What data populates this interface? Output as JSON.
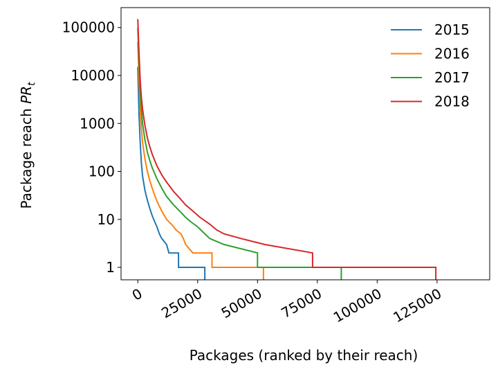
{
  "chart_data": {
    "type": "line",
    "title": "",
    "xlabel": "Packages (ranked by their reach)",
    "ylabel_prefix": "Package reach ",
    "ylabel_math": "PR",
    "ylabel_sub": "t",
    "xlim": [
      -7000,
      147000
    ],
    "ylim": [
      0.55,
      260000
    ],
    "yscale": "log",
    "grid": false,
    "legend_position": "top-right",
    "x_ticks": [
      0,
      25000,
      50000,
      75000,
      100000,
      125000
    ],
    "x_tick_labels": [
      "0",
      "25000",
      "50000",
      "75000",
      "100000",
      "125000"
    ],
    "y_ticks": [
      1,
      10,
      100,
      1000,
      10000,
      100000
    ],
    "y_tick_labels": [
      "1",
      "10",
      "100",
      "1000",
      "10000",
      "100000"
    ],
    "series": [
      {
        "name": "2015",
        "color": "#1f77b4",
        "points": [
          [
            0,
            15000
          ],
          [
            500,
            1500
          ],
          [
            1000,
            400
          ],
          [
            1500,
            150
          ],
          [
            2000,
            80
          ],
          [
            3000,
            40
          ],
          [
            4000,
            25
          ],
          [
            5000,
            17
          ],
          [
            6000,
            12
          ],
          [
            7000,
            9
          ],
          [
            8000,
            7
          ],
          [
            9000,
            5
          ],
          [
            10000,
            4
          ],
          [
            12000,
            3
          ],
          [
            13000,
            2
          ],
          [
            17000,
            2
          ],
          [
            17000,
            1
          ],
          [
            28000,
            1
          ],
          [
            28000,
            0.55
          ]
        ]
      },
      {
        "name": "2016",
        "color": "#ff7f0e",
        "points": [
          [
            0,
            50000
          ],
          [
            500,
            8000
          ],
          [
            1000,
            2000
          ],
          [
            1500,
            800
          ],
          [
            2000,
            400
          ],
          [
            3000,
            180
          ],
          [
            4000,
            100
          ],
          [
            5000,
            65
          ],
          [
            6000,
            45
          ],
          [
            7000,
            32
          ],
          [
            8000,
            24
          ],
          [
            10000,
            15
          ],
          [
            12000,
            10
          ],
          [
            14000,
            8
          ],
          [
            16000,
            6
          ],
          [
            18000,
            5
          ],
          [
            19000,
            4
          ],
          [
            20000,
            3
          ],
          [
            23000,
            2
          ],
          [
            31000,
            2
          ],
          [
            31000,
            1
          ],
          [
            52500,
            1
          ],
          [
            52500,
            0.55
          ]
        ]
      },
      {
        "name": "2017",
        "color": "#2ca02c",
        "points": [
          [
            0,
            100000
          ],
          [
            500,
            20000
          ],
          [
            1000,
            5000
          ],
          [
            1500,
            2000
          ],
          [
            2000,
            1000
          ],
          [
            3000,
            450
          ],
          [
            4000,
            250
          ],
          [
            5000,
            170
          ],
          [
            6000,
            120
          ],
          [
            8000,
            70
          ],
          [
            10000,
            45
          ],
          [
            12000,
            30
          ],
          [
            15000,
            20
          ],
          [
            18000,
            14
          ],
          [
            20000,
            11
          ],
          [
            22000,
            9
          ],
          [
            25000,
            7
          ],
          [
            28000,
            5
          ],
          [
            30000,
            4
          ],
          [
            36000,
            3
          ],
          [
            50000,
            2
          ],
          [
            50000,
            1
          ],
          [
            85000,
            1
          ],
          [
            85000,
            0.55
          ]
        ]
      },
      {
        "name": "2018",
        "color": "#d62728",
        "points": [
          [
            0,
            150000
          ],
          [
            500,
            30000
          ],
          [
            1000,
            8000
          ],
          [
            1500,
            3500
          ],
          [
            2000,
            2000
          ],
          [
            3000,
            900
          ],
          [
            4000,
            500
          ],
          [
            5000,
            330
          ],
          [
            6000,
            230
          ],
          [
            8000,
            130
          ],
          [
            10000,
            85
          ],
          [
            12000,
            60
          ],
          [
            15000,
            38
          ],
          [
            18000,
            26
          ],
          [
            20000,
            20
          ],
          [
            23000,
            15
          ],
          [
            26000,
            11
          ],
          [
            30000,
            8
          ],
          [
            33000,
            6
          ],
          [
            36000,
            5
          ],
          [
            43000,
            4
          ],
          [
            53000,
            3
          ],
          [
            73000,
            2
          ],
          [
            73000,
            1
          ],
          [
            124500,
            1
          ],
          [
            124500,
            0.55
          ]
        ]
      }
    ]
  }
}
